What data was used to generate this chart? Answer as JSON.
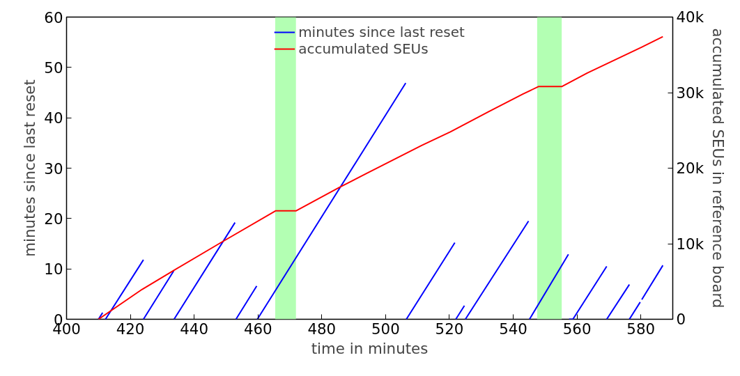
{
  "chart_data": {
    "type": "line",
    "xlabel": "time in minutes",
    "ylabel": "minutes since last reset",
    "y2label": "accumulated SEUs in reference board",
    "xlim": [
      400,
      590
    ],
    "xticks": [
      400,
      420,
      440,
      460,
      480,
      500,
      520,
      540,
      560,
      580
    ],
    "ylim": [
      0,
      60
    ],
    "yticks": [
      0,
      10,
      20,
      30,
      40,
      50,
      60
    ],
    "y2lim": [
      0,
      40000
    ],
    "y2ticks": [
      {
        "value": 0,
        "label": "0"
      },
      {
        "value": 10000,
        "label": "10k"
      },
      {
        "value": 20000,
        "label": "20k"
      },
      {
        "value": 30000,
        "label": "30k"
      },
      {
        "value": 40000,
        "label": "40k"
      }
    ],
    "grid": false,
    "legend": "top",
    "marker": "none",
    "line_style": "solid",
    "bands": [
      {
        "axis": "x",
        "from": 465.4,
        "to": 471.9,
        "color": "#b3ffb3"
      },
      {
        "axis": "x",
        "from": 547.5,
        "to": 555.2,
        "color": "#b3ffb3"
      }
    ],
    "series": [
      {
        "name": "minutes since last reset",
        "color": "#0000ff",
        "x": [
          410,
          411.3,
          null,
          412.2,
          424.1,
          null,
          424.1,
          433.6,
          null,
          433.7,
          452.8,
          null,
          453.1,
          459.6,
          null,
          459.8,
          506.3,
          null,
          506.5,
          521.7,
          null,
          522,
          524.7,
          null,
          525,
          544.8,
          null,
          545.1,
          557.3,
          null,
          557.5,
          558.7,
          569.3,
          null,
          569.3,
          576.4,
          null,
          576.4,
          579.8,
          null,
          580.3,
          586.9
        ],
        "values": [
          0,
          1.3,
          null,
          0,
          11.8,
          null,
          0,
          9.6,
          null,
          0,
          19.2,
          null,
          0,
          6.6,
          null,
          0,
          46.9,
          null,
          0,
          15.2,
          null,
          0,
          2.7,
          null,
          0,
          19.5,
          null,
          0,
          12.9,
          null,
          0,
          0,
          10.5,
          null,
          0,
          6.9,
          null,
          0,
          3.4,
          null,
          3.9,
          10.7
        ]
      },
      {
        "name": "accumulated SEUs",
        "color": "#ff0000",
        "axis": "y2",
        "x": [
          410,
          423.7,
          433.7,
          449,
          465.5,
          471.9,
          485.3,
          494,
          511.3,
          520.3,
          532.4,
          543,
          547.9,
          555.2,
          563.2,
          580.2,
          586.9
        ],
        "values": [
          0,
          3960,
          6490,
          10300,
          14350,
          14350,
          17400,
          19300,
          23000,
          24800,
          27500,
          29800,
          30800,
          30800,
          32600,
          36000,
          37400
        ]
      }
    ]
  }
}
